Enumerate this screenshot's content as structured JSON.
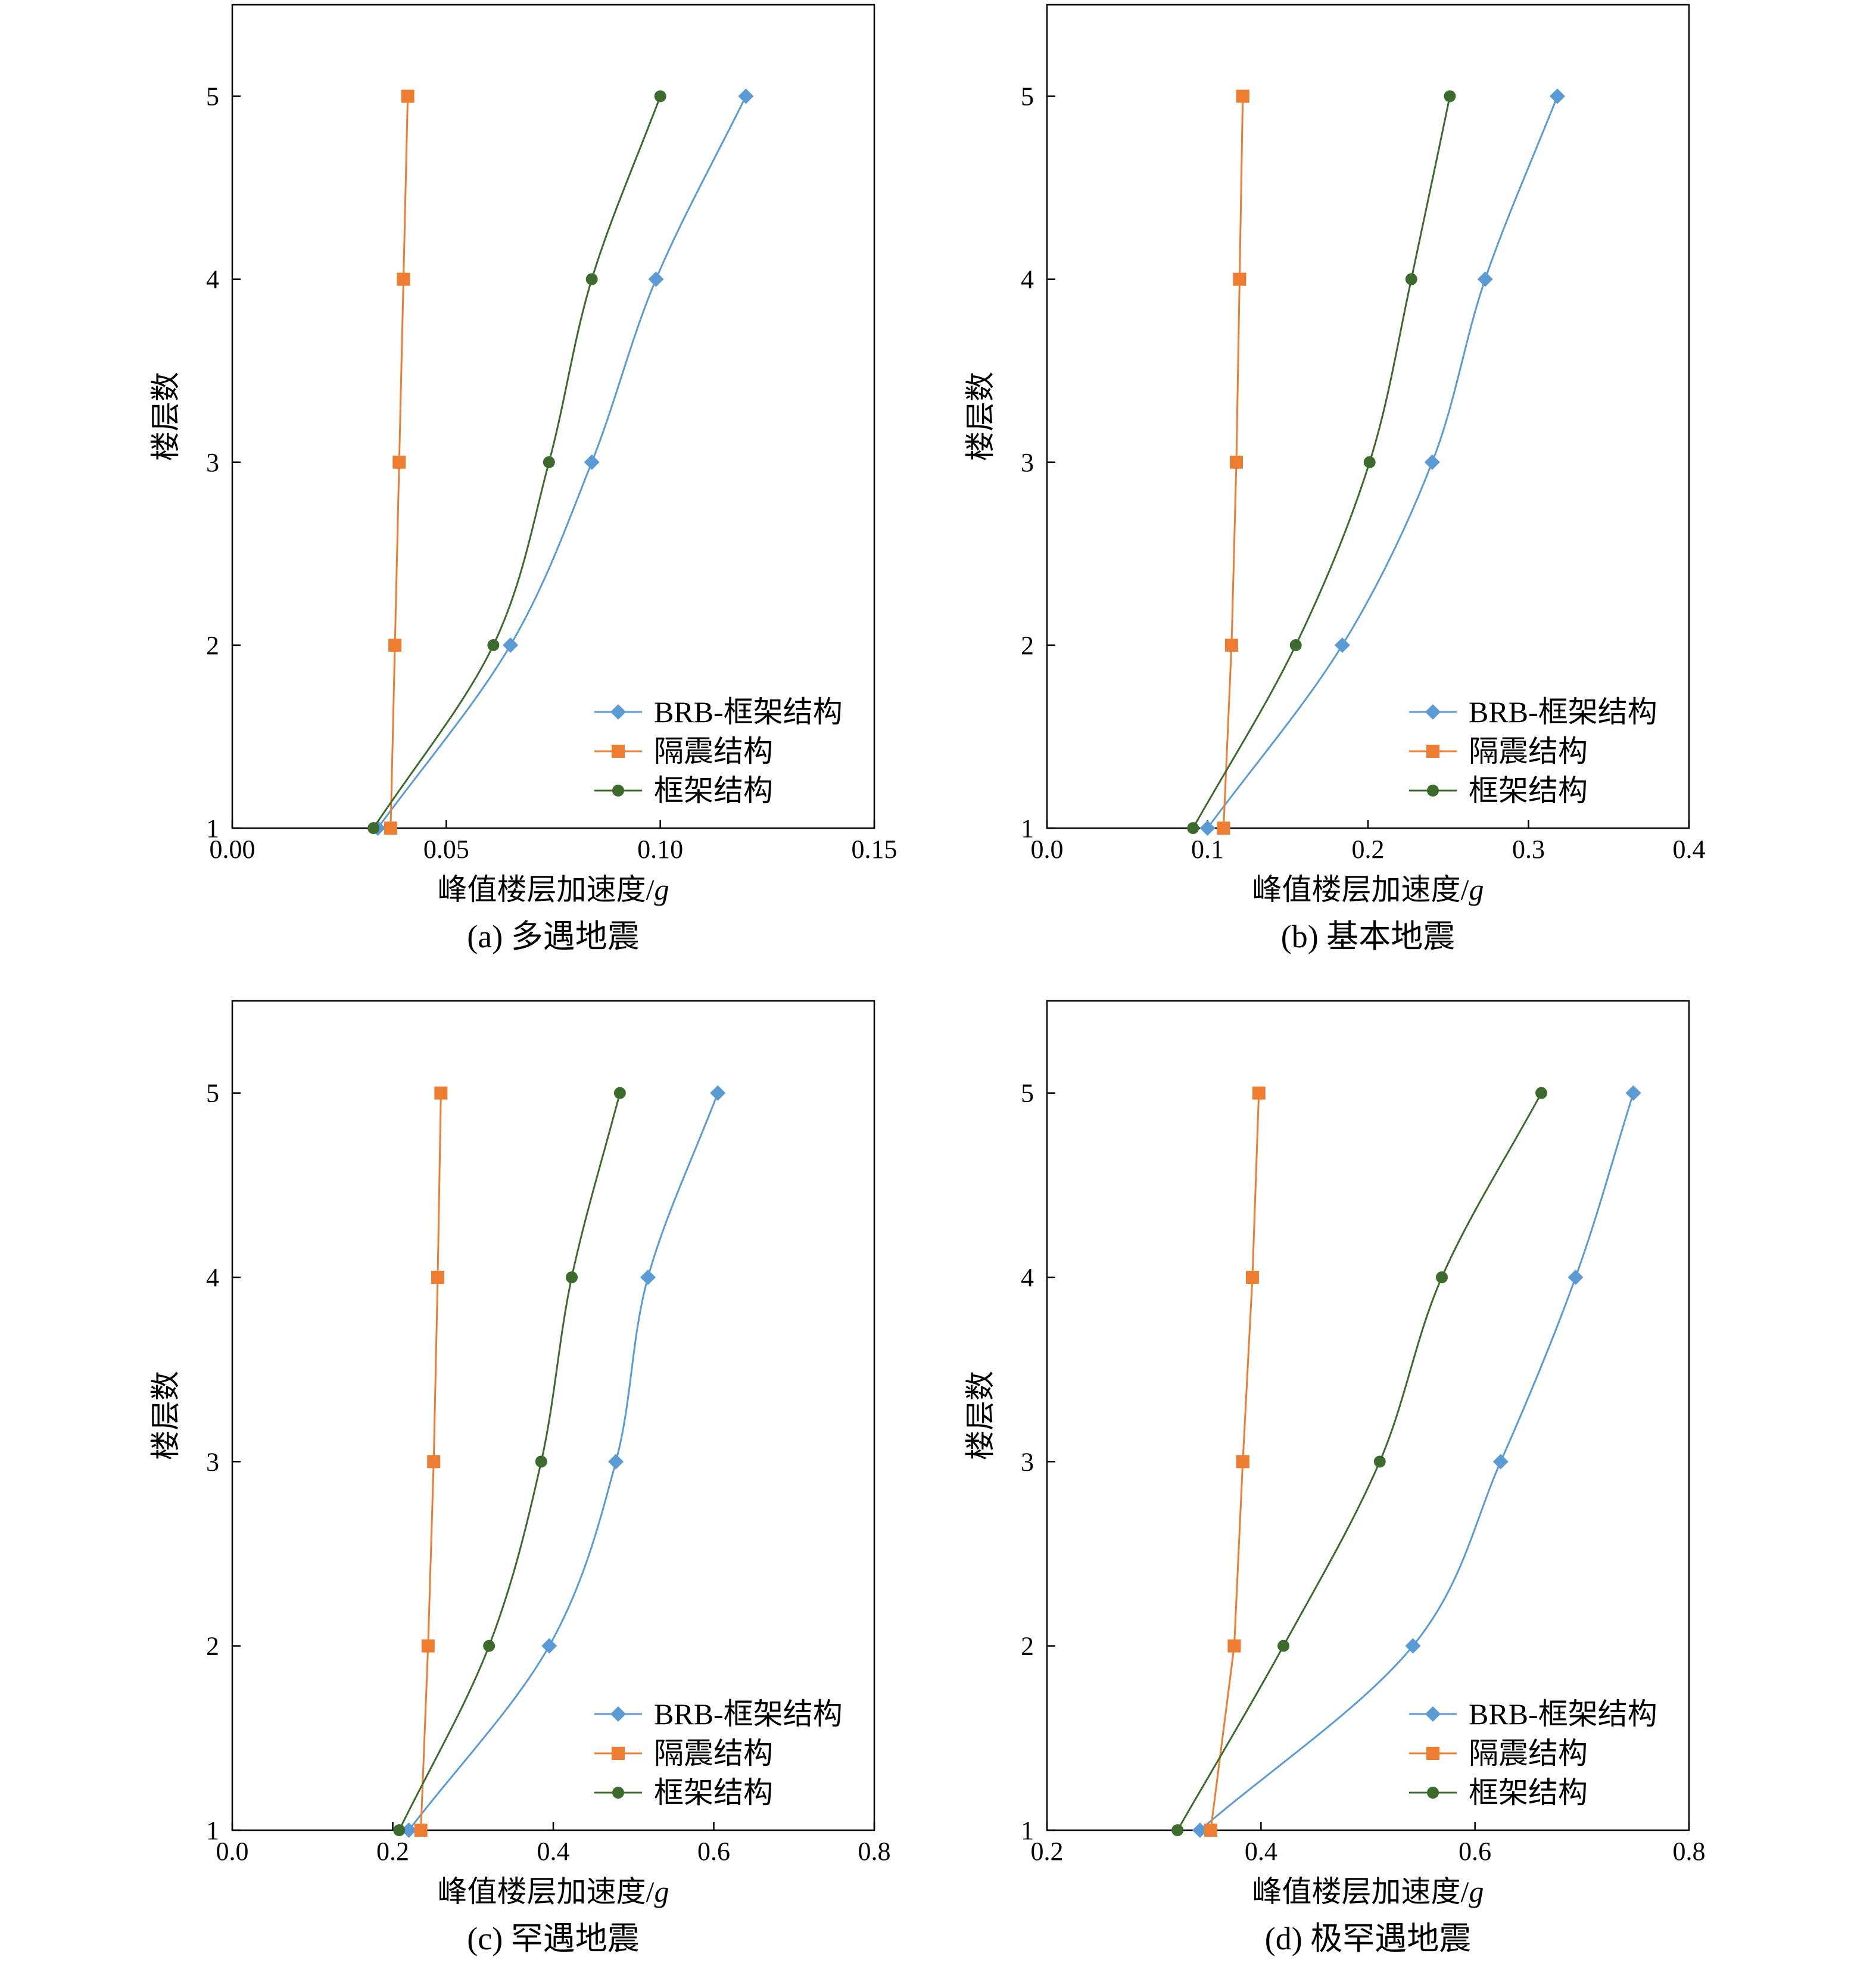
{
  "colors": {
    "brb": "#5b9bd5",
    "isolated": "#ed7d31",
    "frame": "#3d6b2e",
    "axis": "#000000"
  },
  "chart_data": [
    {
      "type": "line",
      "caption": "(a) 多遇地震",
      "xlabel": "峰值楼层加速度/",
      "xlabel_italic": "g",
      "ylabel": "楼层数",
      "xlim": [
        0,
        0.15
      ],
      "ylim": [
        1,
        5.5
      ],
      "x_ticks": [
        "0.00",
        "0.05",
        "0.10",
        "0.15"
      ],
      "x_tick_values": [
        0,
        0.05,
        0.1,
        0.15
      ],
      "y_ticks": [
        "1",
        "2",
        "3",
        "4",
        "5"
      ],
      "y_tick_values": [
        1,
        2,
        3,
        4,
        5
      ],
      "legend_position": "bottom-right",
      "series": [
        {
          "name": "BRB-框架结构",
          "marker": "diamond",
          "x": [
            0.034,
            0.065,
            0.084,
            0.099,
            0.12
          ],
          "y": [
            1,
            2,
            3,
            4,
            5
          ]
        },
        {
          "name": "隔震结构",
          "marker": "square",
          "x": [
            0.037,
            0.038,
            0.039,
            0.04,
            0.041
          ],
          "y": [
            1,
            2,
            3,
            4,
            5
          ]
        },
        {
          "name": "框架结构",
          "marker": "circle",
          "x": [
            0.033,
            0.061,
            0.074,
            0.084,
            0.1
          ],
          "y": [
            1,
            2,
            3,
            4,
            5
          ]
        }
      ]
    },
    {
      "type": "line",
      "caption": "(b) 基本地震",
      "xlabel": "峰值楼层加速度/",
      "xlabel_italic": "g",
      "ylabel": "楼层数",
      "xlim": [
        0,
        0.4
      ],
      "ylim": [
        1,
        5.5
      ],
      "x_ticks": [
        "0.0",
        "0.1",
        "0.2",
        "0.3",
        "0.4"
      ],
      "x_tick_values": [
        0,
        0.1,
        0.2,
        0.3,
        0.4
      ],
      "y_ticks": [
        "1",
        "2",
        "3",
        "4",
        "5"
      ],
      "y_tick_values": [
        1,
        2,
        3,
        4,
        5
      ],
      "legend_position": "bottom-right",
      "series": [
        {
          "name": "BRB-框架结构",
          "marker": "diamond",
          "x": [
            0.1,
            0.184,
            0.24,
            0.273,
            0.318
          ],
          "y": [
            1,
            2,
            3,
            4,
            5
          ]
        },
        {
          "name": "隔震结构",
          "marker": "square",
          "x": [
            0.11,
            0.115,
            0.118,
            0.12,
            0.122
          ],
          "y": [
            1,
            2,
            3,
            4,
            5
          ]
        },
        {
          "name": "框架结构",
          "marker": "circle",
          "x": [
            0.091,
            0.155,
            0.201,
            0.227,
            0.251
          ],
          "y": [
            1,
            2,
            3,
            4,
            5
          ]
        }
      ]
    },
    {
      "type": "line",
      "caption": "(c) 罕遇地震",
      "xlabel": "峰值楼层加速度/",
      "xlabel_italic": "g",
      "ylabel": "楼层数",
      "xlim": [
        0,
        0.8
      ],
      "ylim": [
        1,
        5.5
      ],
      "x_ticks": [
        "0.0",
        "0.2",
        "0.4",
        "0.6",
        "0.8"
      ],
      "x_tick_values": [
        0,
        0.2,
        0.4,
        0.6,
        0.8
      ],
      "y_ticks": [
        "1",
        "2",
        "3",
        "4",
        "5"
      ],
      "y_tick_values": [
        1,
        2,
        3,
        4,
        5
      ],
      "legend_position": "bottom-right",
      "series": [
        {
          "name": "BRB-框架结构",
          "marker": "diamond",
          "x": [
            0.22,
            0.395,
            0.478,
            0.518,
            0.605
          ],
          "y": [
            1,
            2,
            3,
            4,
            5
          ]
        },
        {
          "name": "隔震结构",
          "marker": "square",
          "x": [
            0.235,
            0.244,
            0.251,
            0.256,
            0.26
          ],
          "y": [
            1,
            2,
            3,
            4,
            5
          ]
        },
        {
          "name": "框架结构",
          "marker": "circle",
          "x": [
            0.208,
            0.32,
            0.385,
            0.423,
            0.483
          ],
          "y": [
            1,
            2,
            3,
            4,
            5
          ]
        }
      ]
    },
    {
      "type": "line",
      "caption": "(d) 极罕遇地震",
      "xlabel": "峰值楼层加速度/",
      "xlabel_italic": "g",
      "ylabel": "楼层数",
      "xlim": [
        0.2,
        0.8
      ],
      "ylim": [
        1,
        5.5
      ],
      "x_ticks": [
        "0.2",
        "0.4",
        "0.6",
        "0.8"
      ],
      "x_tick_values": [
        0.2,
        0.4,
        0.6,
        0.8
      ],
      "y_ticks": [
        "1",
        "2",
        "3",
        "4",
        "5"
      ],
      "y_tick_values": [
        1,
        2,
        3,
        4,
        5
      ],
      "legend_position": "bottom-right",
      "series": [
        {
          "name": "BRB-框架结构",
          "marker": "diamond",
          "x": [
            0.343,
            0.542,
            0.624,
            0.694,
            0.748
          ],
          "y": [
            1,
            2,
            3,
            4,
            5
          ]
        },
        {
          "name": "隔震结构",
          "marker": "square",
          "x": [
            0.353,
            0.375,
            0.383,
            0.392,
            0.398
          ],
          "y": [
            1,
            2,
            3,
            4,
            5
          ]
        },
        {
          "name": "框架结构",
          "marker": "circle",
          "x": [
            0.322,
            0.421,
            0.511,
            0.569,
            0.662
          ],
          "y": [
            1,
            2,
            3,
            4,
            5
          ]
        }
      ]
    }
  ]
}
